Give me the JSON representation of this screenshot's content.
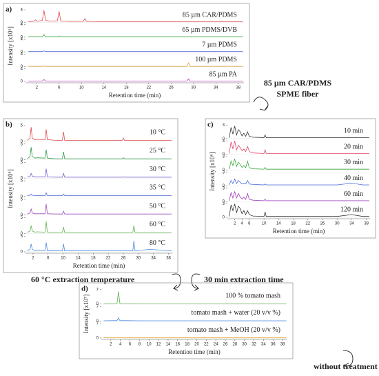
{
  "annotations": [
    "85 µm CAR/PDMS",
    "SPME fiber",
    "60 °C extraction temperature",
    "30 min extraction time",
    "without treatment"
  ],
  "chart_data": [
    {
      "type": "line",
      "panel_label": "a)",
      "xlabel": "Retention time (min)",
      "ylabel": "Intensity [x10⁶]",
      "xlim": [
        0,
        39
      ],
      "xticks": [
        2,
        6,
        10,
        14,
        18,
        22,
        26,
        30,
        34,
        38
      ],
      "ylim": [
        0,
        4
      ],
      "yticks": [
        0,
        4
      ],
      "x": [
        0.5,
        1.5,
        1.8,
        2.1,
        2.6,
        3,
        3.3,
        3.6,
        4.5,
        5.7,
        6,
        6.3,
        8,
        10.3,
        10.6,
        10.9,
        14,
        20,
        28.8,
        29.1,
        29.4,
        38.8
      ],
      "series": [
        {
          "name": "85 µm CAR/PDMS",
          "color": "#e04a4a",
          "values": [
            0.2,
            0.3,
            0.8,
            0.3,
            0.5,
            0.6,
            3.8,
            0.6,
            0.4,
            0.5,
            3.5,
            0.4,
            0.3,
            0.3,
            1.2,
            0.3,
            0.2,
            0.2,
            0.2,
            0.2,
            0.2,
            0.2
          ]
        },
        {
          "name": "65 µm PDMS/DVB",
          "color": "#3aa63a",
          "values": [
            0.1,
            0.1,
            0.1,
            0.1,
            0.1,
            0.1,
            0.8,
            0.1,
            0.1,
            0.1,
            0.3,
            0.1,
            0.1,
            0.1,
            0.1,
            0.1,
            0.1,
            0.1,
            0.1,
            0.1,
            0.1,
            0.1
          ]
        },
        {
          "name": "7 µm PDMS",
          "color": "#4a6ad8",
          "values": [
            0.1,
            0.1,
            0.1,
            0.1,
            0.1,
            0.1,
            0.3,
            0.1,
            0.1,
            0.1,
            0.1,
            0.1,
            0.1,
            0.1,
            0.1,
            0.1,
            0.1,
            0.1,
            0.1,
            0.1,
            0.1,
            0.1
          ]
        },
        {
          "name": "100 µm PDMS",
          "color": "#e0a030",
          "values": [
            0.1,
            0.1,
            0.1,
            0.1,
            0.1,
            0.1,
            0.2,
            0.1,
            0.1,
            0.1,
            0.1,
            0.1,
            0.1,
            0.1,
            0.1,
            0.1,
            0.1,
            0.1,
            0.1,
            1.2,
            0.1,
            0.1
          ]
        },
        {
          "name": "85 µm PA",
          "color": "#c040c0",
          "values": [
            0.1,
            0.1,
            0.1,
            0.1,
            0.1,
            0.1,
            0.6,
            0.1,
            0.1,
            0.1,
            0.1,
            0.1,
            0.1,
            0.1,
            0.1,
            0.1,
            0.1,
            0.1,
            0.1,
            0.8,
            0.1,
            0.1
          ]
        }
      ]
    },
    {
      "type": "line",
      "panel_label": "b)",
      "xlabel": "Retention time (min)",
      "ylabel": "Intensity [x10⁶]",
      "xlim": [
        0,
        39
      ],
      "xticks": [
        2,
        6,
        10,
        14,
        18,
        22,
        26,
        30,
        34,
        38
      ],
      "ylim": [
        0,
        5
      ],
      "yticks": [
        0,
        5
      ],
      "x": [
        0.5,
        1.2,
        1.5,
        1.8,
        2.5,
        3,
        5.2,
        5.5,
        5.8,
        8,
        9.8,
        10.1,
        10.4,
        14,
        18,
        25.7,
        26,
        26.3,
        28.5,
        28.8,
        29.1,
        33,
        38.8
      ],
      "series": [
        {
          "name": "10 °C",
          "color": "#e04a4a",
          "values": [
            0.3,
            1,
            4.5,
            1,
            0.5,
            0.6,
            0.5,
            3.8,
            0.5,
            0.3,
            0.3,
            3,
            0.3,
            0.3,
            0.3,
            0.3,
            1,
            0.3,
            0.3,
            0.3,
            0.3,
            0.3,
            0.3
          ]
        },
        {
          "name": "25 °C",
          "color": "#2e9a4a",
          "values": [
            0.3,
            1,
            4,
            1,
            0.5,
            0.6,
            0.5,
            3.2,
            0.5,
            0.3,
            0.3,
            2.5,
            0.3,
            0.3,
            0.3,
            0.3,
            0.6,
            0.3,
            0.3,
            0.3,
            0.3,
            0.3,
            0.3
          ]
        },
        {
          "name": "30 °C",
          "color": "#7a5ad0",
          "values": [
            0.3,
            0.6,
            1.5,
            0.6,
            0.4,
            0.4,
            0.4,
            3,
            0.4,
            0.3,
            0.3,
            1.5,
            0.3,
            0.3,
            0.3,
            0.3,
            0.4,
            0.3,
            0.3,
            0.3,
            0.3,
            0.3,
            0.3
          ]
        },
        {
          "name": "35 °C",
          "color": "#4a6ad8",
          "values": [
            0.3,
            0.4,
            0.8,
            0.4,
            0.3,
            0.3,
            0.3,
            1.2,
            0.3,
            0.3,
            0.3,
            0.8,
            0.3,
            0.3,
            0.3,
            0.3,
            0.3,
            0.3,
            0.3,
            0.3,
            0.3,
            0.3,
            0.3
          ]
        },
        {
          "name": "50 °C",
          "color": "#a050c0",
          "values": [
            0.3,
            0.6,
            2,
            0.6,
            0.4,
            0.4,
            0.4,
            3.5,
            0.4,
            0.3,
            0.3,
            1.2,
            0.3,
            0.3,
            0.3,
            0.3,
            0.3,
            0.3,
            0.3,
            0.3,
            0.3,
            0.3,
            0.3
          ]
        },
        {
          "name": "60 °C",
          "color": "#5ab04a",
          "values": [
            0.3,
            0.8,
            2.5,
            0.8,
            0.4,
            0.5,
            0.4,
            3.8,
            0.4,
            0.3,
            0.3,
            2,
            0.3,
            0.3,
            0.3,
            0.3,
            0.3,
            0.3,
            0.3,
            2.5,
            0.3,
            0.3,
            0.3
          ]
        },
        {
          "name": "80 °C",
          "color": "#4a8ae0",
          "values": [
            0.3,
            0.8,
            2.5,
            0.8,
            0.4,
            0.5,
            0.4,
            3,
            0.4,
            0.3,
            0.3,
            2.5,
            0.3,
            0.3,
            0.3,
            0.3,
            0.3,
            0.3,
            0.3,
            3.5,
            0.3,
            0.8,
            0.3
          ]
        }
      ]
    },
    {
      "type": "line",
      "panel_label": "c)",
      "xlabel": "Retention time (min)",
      "ylabel": "Intensity [x10⁶]",
      "xlim": [
        0,
        39
      ],
      "xticks": [
        2,
        4,
        6,
        10,
        14,
        18,
        22,
        26,
        30,
        34,
        38
      ],
      "ylim": [
        0,
        3
      ],
      "yticks": [
        0,
        3
      ],
      "x": [
        0.5,
        1,
        1.5,
        2,
        2.5,
        3,
        3.5,
        4,
        4.5,
        5,
        5.5,
        6,
        7,
        10,
        10.3,
        10.6,
        14,
        18,
        26,
        30,
        34,
        37,
        38.8
      ],
      "series": [
        {
          "name": "10 min",
          "color": "#333333",
          "values": [
            0.2,
            2.5,
            1,
            2.8,
            0.8,
            2,
            1.5,
            0.6,
            1.2,
            0.5,
            1.5,
            0.5,
            0.3,
            0.2,
            0.8,
            0.2,
            0.2,
            0.2,
            0.2,
            0.2,
            0.2,
            0.2,
            0.2
          ]
        },
        {
          "name": "20 min",
          "color": "#e04a6a",
          "values": [
            0.2,
            2.8,
            1.2,
            3,
            1,
            2,
            1.5,
            0.8,
            1.2,
            0.6,
            1.8,
            0.6,
            0.3,
            0.2,
            1,
            0.2,
            0.2,
            0.2,
            0.2,
            0.2,
            0.2,
            0.2,
            0.2
          ]
        },
        {
          "name": "30 min",
          "color": "#3aa63a",
          "values": [
            0.2,
            2,
            1,
            2.5,
            0.8,
            1.8,
            1.2,
            0.6,
            1,
            0.5,
            2,
            0.5,
            0.3,
            0.2,
            0.6,
            0.2,
            0.2,
            0.2,
            0.2,
            0.2,
            0.2,
            0.2,
            0.2
          ]
        },
        {
          "name": "40 min",
          "color": "#4a6ad8",
          "values": [
            0.2,
            1.2,
            0.5,
            1.5,
            0.5,
            1.2,
            0.8,
            0.4,
            0.6,
            0.4,
            1.2,
            0.4,
            0.3,
            0.2,
            0.4,
            0.2,
            0.2,
            0.2,
            0.2,
            0.2,
            0.6,
            0.2,
            0.2
          ]
        },
        {
          "name": "60 min",
          "color": "#a040c0",
          "values": [
            0.2,
            2,
            0.8,
            2.2,
            0.8,
            1.8,
            1,
            0.6,
            1,
            0.5,
            1.8,
            0.5,
            0.3,
            0.2,
            0.5,
            0.2,
            0.2,
            0.2,
            0.2,
            0.2,
            0.2,
            0.2,
            0.2
          ]
        },
        {
          "name": "120 min",
          "color": "#333333",
          "values": [
            0.2,
            2.8,
            1.5,
            3,
            1,
            2.5,
            2,
            0.8,
            1.5,
            0.6,
            1.5,
            0.6,
            0.3,
            0.2,
            1.2,
            0.2,
            0.2,
            0.2,
            0.2,
            0.2,
            0.6,
            0.2,
            0.2
          ]
        }
      ]
    },
    {
      "type": "line",
      "panel_label": "d)",
      "xlabel": "Retention time (min)",
      "ylabel": "Intensity [x10⁷]",
      "xlim": [
        0,
        39
      ],
      "xticks": [
        2,
        4,
        6,
        8,
        10,
        12,
        14,
        16,
        18,
        20,
        22,
        24,
        26,
        28,
        30,
        32,
        34,
        36,
        38
      ],
      "ylim": [
        0,
        7
      ],
      "yticks": [
        0,
        7
      ],
      "x": [
        0.5,
        3.3,
        3.6,
        3.9,
        8,
        20,
        38.8
      ],
      "series": [
        {
          "name": "100 % tomato mash",
          "color": "#5ab04a",
          "values": [
            0.1,
            0.2,
            6,
            0.2,
            0.1,
            0.1,
            0.1
          ]
        },
        {
          "name": "tomato mash + water (20 v/v %)",
          "color": "#4a8ae0",
          "values": [
            0.1,
            0.2,
            1.5,
            0.2,
            0.1,
            0.1,
            0.1
          ]
        },
        {
          "name": "tomato mash + MeOH (20 v/v %)",
          "color": "#e0a030",
          "values": [
            0.1,
            0.1,
            0.3,
            0.1,
            0.1,
            0.1,
            0.1
          ]
        }
      ]
    }
  ]
}
